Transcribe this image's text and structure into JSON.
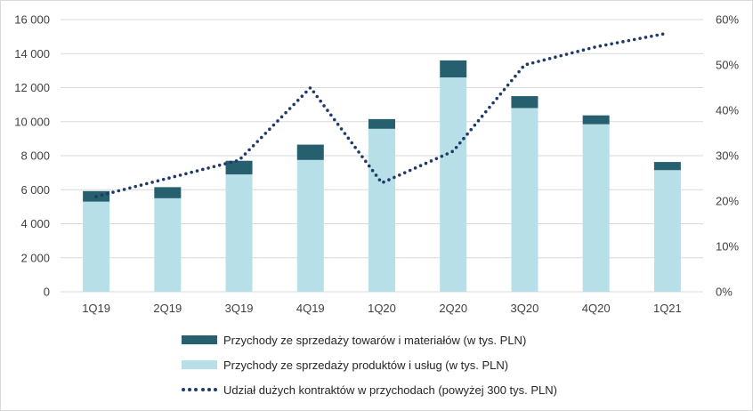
{
  "colors": {
    "goods": "#265f6d",
    "products": "#b7dfe8",
    "share": "#1f3a68",
    "grid": "#d9d9d9",
    "axis_text": "#404040"
  },
  "legend": {
    "goods": "Przychody ze sprzedaży towarów i materiałów (w tys. PLN)",
    "products": "Przychody ze sprzedaży produktów i usług (w tys. PLN)",
    "share": "Udział dużych kontraktów w przychodach (powyżej 300 tys. PLN)"
  },
  "chart_data": {
    "type": "bar",
    "stacked": true,
    "categories": [
      "1Q19",
      "2Q19",
      "3Q19",
      "4Q19",
      "1Q20",
      "2Q20",
      "3Q20",
      "4Q20",
      "1Q21"
    ],
    "series": [
      {
        "name": "Przychody ze sprzedaży produktów i usług (w tys. PLN)",
        "type": "bar",
        "axis": "left",
        "values": [
          5300,
          5500,
          6900,
          7750,
          9580,
          12600,
          10800,
          9850,
          7150
        ]
      },
      {
        "name": "Przychody ze sprzedaży towarów i materiałów (w tys. PLN)",
        "type": "bar",
        "axis": "left",
        "values": [
          620,
          650,
          800,
          900,
          570,
          1000,
          700,
          520,
          480
        ]
      },
      {
        "name": "Udział dużych kontraktów w przychodach (powyżej 300 tys. PLN)",
        "type": "line",
        "style": "dotted",
        "axis": "right",
        "values": [
          0.21,
          0.25,
          0.29,
          0.45,
          0.24,
          0.31,
          0.5,
          0.54,
          0.57
        ]
      }
    ],
    "y_left": {
      "ylim": [
        0,
        16000
      ],
      "ticks": [
        0,
        2000,
        4000,
        6000,
        8000,
        10000,
        12000,
        14000,
        16000
      ],
      "tick_labels": [
        "0",
        "2 000",
        "4 000",
        "6 000",
        "8 000",
        "10 000",
        "12 000",
        "14 000",
        "16 000"
      ]
    },
    "y_right": {
      "ylim": [
        0,
        0.6
      ],
      "ticks": [
        0,
        0.1,
        0.2,
        0.3,
        0.4,
        0.5,
        0.6
      ],
      "tick_labels": [
        "0%",
        "10%",
        "20%",
        "30%",
        "40%",
        "50%",
        "60%"
      ]
    },
    "grid": true,
    "legend_position": "bottom"
  }
}
